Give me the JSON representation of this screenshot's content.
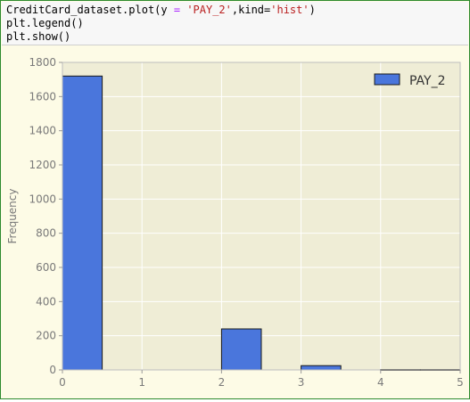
{
  "code": {
    "line1": {
      "prefix": "CreditCard_dataset.plot(y ",
      "op": "=",
      "mid": " ",
      "str1": "'PAY_2'",
      "mid2": ",kind=",
      "str2": "'hist'",
      "suffix": ")"
    },
    "line2": "plt.legend()",
    "line3": "plt.show()"
  },
  "colors": {
    "bar_fill": "#4a76dc",
    "bar_edge": "#1a1a1a",
    "plot_bg": "#efedd6",
    "grid": "#ffffff",
    "tick_text": "#7a7a7a"
  },
  "chart_data": {
    "type": "bar",
    "title": "",
    "xlabel": "",
    "ylabel": "Frequency",
    "xlim": [
      0,
      5
    ],
    "ylim": [
      0,
      1800
    ],
    "x_ticks": [
      0,
      1,
      2,
      3,
      4,
      5
    ],
    "y_ticks": [
      0,
      200,
      400,
      600,
      800,
      1000,
      1200,
      1400,
      1600,
      1800
    ],
    "grid": true,
    "legend_position": "top-right",
    "series": [
      {
        "name": "PAY_2",
        "bins": [
          {
            "x0": 0.0,
            "x1": 0.5,
            "value": 1720
          },
          {
            "x0": 0.5,
            "x1": 1.0,
            "value": 0
          },
          {
            "x0": 1.0,
            "x1": 1.5,
            "value": 0
          },
          {
            "x0": 1.5,
            "x1": 2.0,
            "value": 0
          },
          {
            "x0": 2.0,
            "x1": 2.5,
            "value": 240
          },
          {
            "x0": 2.5,
            "x1": 3.0,
            "value": 0
          },
          {
            "x0": 3.0,
            "x1": 3.5,
            "value": 25
          },
          {
            "x0": 3.5,
            "x1": 4.0,
            "value": 0
          },
          {
            "x0": 4.0,
            "x1": 4.5,
            "value": 2
          },
          {
            "x0": 4.5,
            "x1": 5.0,
            "value": 2
          }
        ]
      }
    ]
  }
}
